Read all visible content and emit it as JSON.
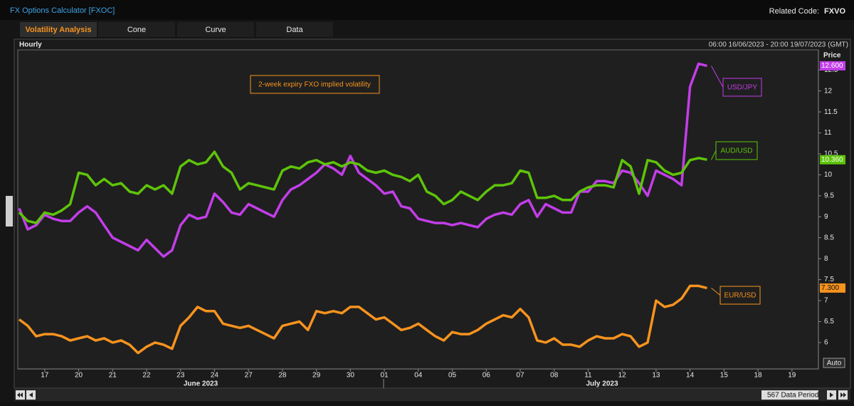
{
  "header": {
    "title": "FX Options Calculator [FXOC]",
    "related_label": "Related Code:",
    "related_code": "FXVO"
  },
  "tabs": [
    "Volatility Analysis",
    "Cone",
    "Curve",
    "Data"
  ],
  "active_tab": 0,
  "panel": {
    "interval": "Hourly",
    "range": "06:00 16/06/2023 - 20:00 19/07/2023 (GMT)",
    "auto_button": "Auto",
    "data_period": "567 Data Period"
  },
  "chart_data": {
    "type": "line",
    "annotation": "2-week expiry FXO implied volatility",
    "y_label": "Price",
    "month_labels": [
      "June 2023",
      "July 2023"
    ],
    "categories": [
      null,
      null,
      null,
      "17",
      null,
      null,
      null,
      "20",
      null,
      null,
      null,
      "21",
      null,
      null,
      null,
      "22",
      null,
      null,
      null,
      "23",
      null,
      null,
      null,
      "24",
      null,
      null,
      null,
      "27",
      null,
      null,
      null,
      "28",
      null,
      null,
      null,
      "29",
      null,
      null,
      null,
      "30",
      null,
      null,
      null,
      "01",
      null,
      null,
      null,
      "04",
      null,
      null,
      null,
      "05",
      null,
      null,
      null,
      "06",
      null,
      null,
      null,
      "07",
      null,
      null,
      null,
      "08",
      null,
      null,
      null,
      "11",
      null,
      null,
      null,
      "12",
      null,
      null,
      null,
      "13",
      null,
      null,
      null,
      "14",
      null,
      null,
      null,
      "15",
      null,
      null,
      null,
      "18",
      null,
      null,
      null,
      "19",
      null,
      null,
      null
    ],
    "series": [
      {
        "name": "USD/JPY",
        "color": "#c23ee8",
        "label_color": "#ffffff",
        "values": [
          9.2,
          8.7,
          8.8,
          9.05,
          8.95,
          8.9,
          8.9,
          9.1,
          9.25,
          9.1,
          8.8,
          8.5,
          8.4,
          8.3,
          8.2,
          8.45,
          8.25,
          8.05,
          8.2,
          8.8,
          9.05,
          8.95,
          9.0,
          9.55,
          9.35,
          9.1,
          9.05,
          9.3,
          9.2,
          9.1,
          9.0,
          9.4,
          9.65,
          9.75,
          9.9,
          10.05,
          10.25,
          10.15,
          10.0,
          10.45,
          10.05,
          9.9,
          9.75,
          9.55,
          9.6,
          9.25,
          9.2,
          8.95,
          8.9,
          8.85,
          8.85,
          8.8,
          8.85,
          8.8,
          8.75,
          8.95,
          9.05,
          9.1,
          9.05,
          9.3,
          9.4,
          9.0,
          9.3,
          9.2,
          9.1,
          9.1,
          9.6,
          9.6,
          9.85,
          9.85,
          9.8,
          10.1,
          10.05,
          9.8,
          9.5,
          10.1,
          10.0,
          9.9,
          9.75,
          12.1,
          12.65,
          12.6,
          null,
          null,
          null,
          null,
          null,
          null,
          null,
          null,
          null,
          null,
          null,
          null,
          null
        ],
        "value_labels": [
          null,
          null,
          null,
          null,
          null,
          null,
          null,
          null,
          null,
          null,
          null,
          null,
          null,
          null,
          null,
          null,
          null,
          null,
          null,
          null,
          null,
          null,
          null,
          null,
          null,
          null,
          null,
          null,
          null,
          null,
          null,
          null,
          null,
          null,
          null,
          null,
          null,
          null,
          null,
          null,
          null,
          null,
          null,
          null,
          null,
          null,
          null,
          null,
          null,
          null,
          null,
          null,
          null,
          null,
          null,
          null,
          null,
          null,
          null,
          null,
          null,
          null,
          null,
          null,
          null,
          null,
          null,
          null,
          null,
          null,
          null,
          null,
          null,
          null,
          null,
          null,
          null,
          null,
          null,
          null,
          null,
          "12.600",
          null,
          null,
          null,
          null,
          null,
          null,
          null,
          null,
          null,
          null,
          null,
          null,
          null
        ]
      },
      {
        "name": "AUD/USD",
        "color": "#5ec40a",
        "label_color": "#ffffff",
        "values": [
          9.1,
          8.9,
          8.85,
          9.1,
          9.05,
          9.15,
          9.3,
          10.05,
          10.0,
          9.75,
          9.9,
          9.75,
          9.8,
          9.6,
          9.55,
          9.75,
          9.65,
          9.75,
          9.55,
          10.2,
          10.35,
          10.25,
          10.3,
          10.55,
          10.2,
          10.05,
          9.65,
          9.8,
          9.75,
          9.7,
          9.65,
          10.1,
          10.2,
          10.15,
          10.3,
          10.35,
          10.25,
          10.3,
          10.2,
          10.3,
          10.25,
          10.1,
          10.05,
          10.1,
          10.0,
          9.95,
          9.85,
          10.0,
          9.6,
          9.5,
          9.3,
          9.4,
          9.6,
          9.5,
          9.4,
          9.6,
          9.75,
          9.75,
          9.8,
          10.1,
          10.05,
          9.45,
          9.45,
          9.5,
          9.4,
          9.4,
          9.6,
          9.7,
          9.75,
          9.75,
          9.7,
          10.35,
          10.2,
          9.55,
          10.35,
          10.3,
          10.1,
          10.0,
          10.05,
          10.35,
          10.4,
          10.36,
          null,
          null,
          null,
          null,
          null,
          null,
          null,
          null,
          null,
          null,
          null,
          null,
          null
        ],
        "value_labels": [
          null,
          null,
          null,
          null,
          null,
          null,
          null,
          null,
          null,
          null,
          null,
          null,
          null,
          null,
          null,
          null,
          null,
          null,
          null,
          null,
          null,
          null,
          null,
          null,
          null,
          null,
          null,
          null,
          null,
          null,
          null,
          null,
          null,
          null,
          null,
          null,
          null,
          null,
          null,
          null,
          null,
          null,
          null,
          null,
          null,
          null,
          null,
          null,
          null,
          null,
          null,
          null,
          null,
          null,
          null,
          null,
          null,
          null,
          null,
          null,
          null,
          null,
          null,
          null,
          null,
          null,
          null,
          null,
          null,
          null,
          null,
          null,
          null,
          null,
          null,
          null,
          null,
          null,
          null,
          null,
          null,
          "10.360",
          null,
          null,
          null,
          null,
          null,
          null,
          null,
          null,
          null,
          null,
          null,
          null,
          null
        ]
      },
      {
        "name": "EUR/USD",
        "color": "#f7931e",
        "label_color": "#111111",
        "values": [
          6.55,
          6.4,
          6.15,
          6.2,
          6.2,
          6.15,
          6.05,
          6.1,
          6.15,
          6.05,
          6.1,
          6.0,
          6.05,
          5.95,
          5.75,
          5.9,
          6.0,
          5.95,
          5.85,
          6.4,
          6.6,
          6.85,
          6.75,
          6.75,
          6.45,
          6.4,
          6.35,
          6.4,
          6.3,
          6.2,
          6.1,
          6.4,
          6.45,
          6.5,
          6.3,
          6.75,
          6.7,
          6.75,
          6.7,
          6.85,
          6.85,
          6.7,
          6.55,
          6.6,
          6.45,
          6.3,
          6.35,
          6.45,
          6.3,
          6.15,
          6.05,
          6.25,
          6.2,
          6.2,
          6.3,
          6.45,
          6.55,
          6.65,
          6.6,
          6.8,
          6.6,
          6.05,
          6.0,
          6.1,
          5.95,
          5.95,
          5.9,
          6.05,
          6.15,
          6.1,
          6.1,
          6.2,
          6.15,
          5.9,
          6.0,
          7.0,
          6.85,
          6.9,
          7.05,
          7.35,
          7.35,
          7.3,
          null,
          null,
          null,
          null,
          null,
          null,
          null,
          null,
          null,
          null,
          null,
          null,
          null
        ],
        "value_labels": [
          null,
          null,
          null,
          null,
          null,
          null,
          null,
          null,
          null,
          null,
          null,
          null,
          null,
          null,
          null,
          null,
          null,
          null,
          null,
          null,
          null,
          null,
          null,
          null,
          null,
          null,
          null,
          null,
          null,
          null,
          null,
          null,
          null,
          null,
          null,
          null,
          null,
          null,
          null,
          null,
          null,
          null,
          null,
          null,
          null,
          null,
          null,
          null,
          null,
          null,
          null,
          null,
          null,
          null,
          null,
          null,
          null,
          null,
          null,
          null,
          null,
          null,
          null,
          null,
          null,
          null,
          null,
          null,
          null,
          null,
          null,
          null,
          null,
          null,
          null,
          null,
          null,
          null,
          null,
          null,
          null,
          "7.300",
          null,
          null,
          null,
          null,
          null,
          null,
          null,
          null,
          null,
          null,
          null,
          null,
          null
        ]
      }
    ],
    "ylim": [
      5.37,
      12.98
    ],
    "yticks": [
      6,
      6.5,
      7,
      7.5,
      8,
      8.5,
      9,
      9.5,
      10,
      10.5,
      11,
      11.5,
      12,
      12.5
    ],
    "grid": false
  }
}
